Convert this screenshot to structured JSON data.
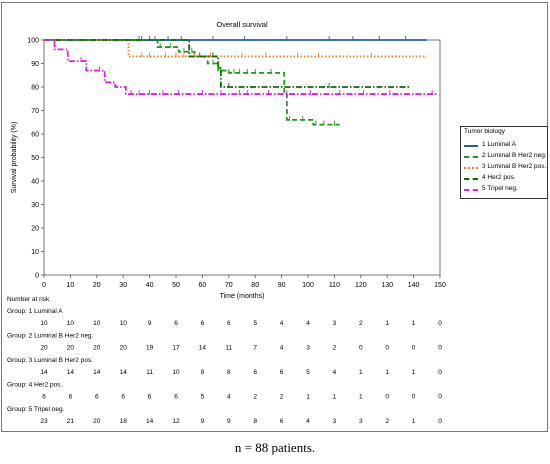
{
  "chart_data": {
    "type": "line",
    "title": "Overall survival",
    "xlabel": "Time (months)",
    "ylabel": "Survival probability (%)",
    "xlim": [
      0,
      150
    ],
    "ylim": [
      0,
      100
    ],
    "xticks": [
      0,
      10,
      20,
      30,
      40,
      50,
      60,
      70,
      80,
      90,
      100,
      110,
      120,
      130,
      140,
      150
    ],
    "yticks": [
      0,
      10,
      20,
      30,
      40,
      50,
      60,
      70,
      80,
      90,
      100
    ],
    "grid": false,
    "legend_title": "Tumor biology",
    "legend_position": "right",
    "series": [
      {
        "name": "1 Luminal A",
        "color": "#1f5fb0",
        "dash": "solid",
        "steps": [
          [
            0,
            100
          ],
          [
            145,
            100
          ]
        ],
        "censored": [
          37,
          42,
          47,
          52,
          64,
          76,
          92,
          108,
          117,
          127,
          137
        ]
      },
      {
        "name": "2 Luminal B Her2 neg.",
        "color": "#1d9a1d",
        "dash": "dash",
        "steps": [
          [
            0,
            100
          ],
          [
            43,
            97
          ],
          [
            51,
            95
          ],
          [
            57,
            93
          ],
          [
            62,
            90
          ],
          [
            66,
            87
          ],
          [
            70,
            86
          ],
          [
            91,
            77
          ],
          [
            92,
            66
          ],
          [
            102,
            64
          ],
          [
            112,
            64
          ]
        ],
        "censored": [
          36,
          40,
          44,
          48,
          53,
          56,
          64,
          67,
          70,
          72,
          74,
          77,
          80,
          86,
          93,
          98,
          103,
          106,
          110
        ]
      },
      {
        "name": "3 Luminal B Her2 pos.",
        "color": "#f08020",
        "dash": "dot",
        "steps": [
          [
            0,
            100
          ],
          [
            32,
            93
          ],
          [
            145,
            93
          ]
        ],
        "censored": [
          37,
          40,
          46,
          50,
          53,
          57,
          63,
          75,
          84,
          96,
          104,
          124
        ]
      },
      {
        "name": "4 Her2 pos.",
        "color": "#0d6b0d",
        "dash": "dashdot",
        "steps": [
          [
            0,
            100
          ],
          [
            55,
            93
          ],
          [
            66,
            88
          ],
          [
            67,
            80
          ],
          [
            139,
            80
          ]
        ],
        "censored": [
          59,
          64,
          70,
          108
        ]
      },
      {
        "name": "5 Tripel neg.",
        "color": "#e020e0",
        "dash": "dashdot",
        "steps": [
          [
            0,
            100
          ],
          [
            4,
            96
          ],
          [
            9,
            91
          ],
          [
            16,
            87
          ],
          [
            23,
            82
          ],
          [
            27,
            80
          ],
          [
            31,
            77
          ],
          [
            149,
            77
          ]
        ],
        "censored": [
          14,
          21,
          33,
          36,
          40,
          45,
          51,
          60,
          67,
          74,
          77,
          85,
          92,
          101,
          112,
          121,
          131,
          147
        ]
      }
    ],
    "risk_table": {
      "title": "Number at risk",
      "groups": [
        {
          "label": "Group: 1 Luminal A",
          "values": [
            "10",
            "10",
            "10",
            "10",
            "9",
            "6",
            "6",
            "6",
            "5",
            "4",
            "4",
            "3",
            "2",
            "1",
            "1",
            "0"
          ]
        },
        {
          "label": "Group: 2 Luminal B Her2 neg.",
          "values": [
            "20",
            "20",
            "20",
            "20",
            "19",
            "17",
            "14",
            "11",
            "7",
            "4",
            "3",
            "2",
            "0",
            "0",
            "0",
            "0"
          ]
        },
        {
          "label": "Group: 3 Luminal B Her2 pos.",
          "values": [
            "14",
            "14",
            "14",
            "14",
            "11",
            "10",
            "8",
            "8",
            "6",
            "6",
            "5",
            "4",
            "1",
            "1",
            "1",
            "0"
          ]
        },
        {
          "label": "Group: 4 Her2 pos.",
          "values": [
            "6",
            "6",
            "6",
            "6",
            "6",
            "6",
            "5",
            "4",
            "2",
            "2",
            "1",
            "1",
            "1",
            "0",
            "0",
            "0"
          ]
        },
        {
          "label": "Group: 5 Tripel neg.",
          "values": [
            "23",
            "21",
            "20",
            "18",
            "14",
            "12",
            "9",
            "9",
            "8",
            "6",
            "4",
            "3",
            "3",
            "2",
            "1",
            "0"
          ]
        }
      ]
    }
  },
  "caption": "n = 88 patients."
}
